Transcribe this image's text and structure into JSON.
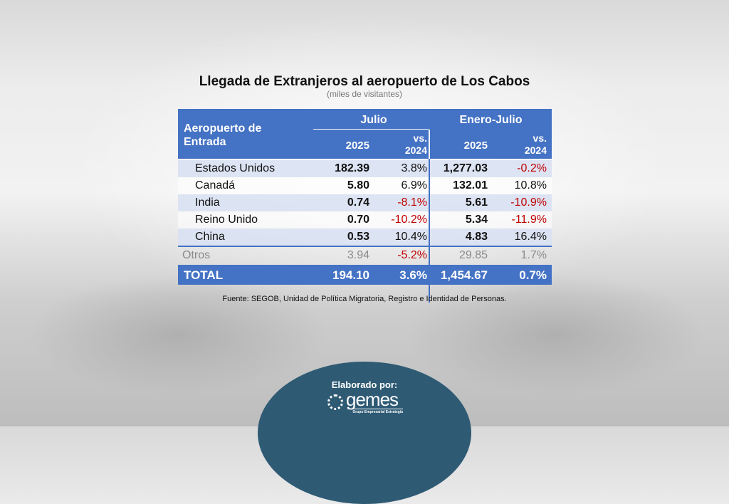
{
  "title": "Llegada de Extranjeros al aeropuerto de Los Cabos",
  "subtitle": "(miles de visitantes)",
  "table": {
    "col_label": "Aeropuerto de Entrada",
    "group1": "Julio",
    "group2": "Enero-Julio",
    "year": "2025",
    "vs": "vs.",
    "vs_year": "2024",
    "rows": [
      {
        "name": "Estados Unidos",
        "jul": "182.39",
        "jul_vs": "3.8%",
        "ej": "1,277.03",
        "ej_vs": "-0.2%"
      },
      {
        "name": "Canadá",
        "jul": "5.80",
        "jul_vs": "6.9%",
        "ej": "132.01",
        "ej_vs": "10.8%"
      },
      {
        "name": "India",
        "jul": "0.74",
        "jul_vs": "-8.1%",
        "ej": "5.61",
        "ej_vs": "-10.9%"
      },
      {
        "name": "Reino Unido",
        "jul": "0.70",
        "jul_vs": "-10.2%",
        "ej": "5.34",
        "ej_vs": "-11.9%"
      },
      {
        "name": "China",
        "jul": "0.53",
        "jul_vs": "10.4%",
        "ej": "4.83",
        "ej_vs": "16.4%"
      }
    ],
    "otros": {
      "name": "Otros",
      "jul": "3.94",
      "jul_vs": "-5.2%",
      "ej": "29.85",
      "ej_vs": "1.7%"
    },
    "total": {
      "name": "TOTAL",
      "jul": "194.10",
      "jul_vs": "3.6%",
      "ej": "1,454.67",
      "ej_vs": "0.7%"
    }
  },
  "source": "Fuente: SEGOB, Unidad de Política Migratoria, Registro e Identidad de Personas.",
  "footer": {
    "label": "Elaborado por:",
    "logo_text": "gemes",
    "logo_tagline": "Grupo Empresarial Estrategia"
  },
  "colors": {
    "header": "#4472c4",
    "negative": "#c00000",
    "badge": "#2e5a74"
  }
}
